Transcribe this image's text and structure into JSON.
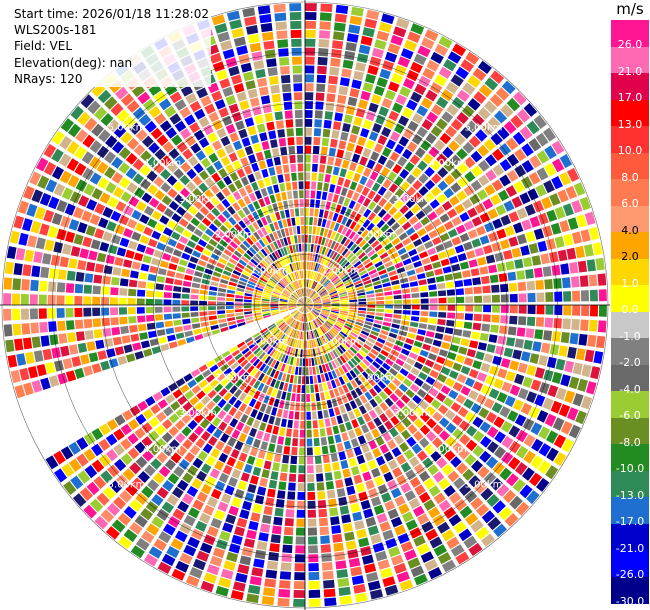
{
  "info": {
    "start_time": "Start time: 2026/01/18 11:28:02",
    "instrument": "WLS200s-181",
    "field": "Field: VEL",
    "elevation": "Elevation(deg): nan",
    "nrays": "NRays: 120"
  },
  "colorbar": {
    "unit": "m/s",
    "ticks": [
      "26.0",
      "21.0",
      "17.0",
      "13.0",
      "10.0",
      "8.0",
      "6.0",
      "4.0",
      "2.0",
      "1.0",
      "0.0",
      "-1.0",
      "-2.0",
      "-4.0",
      "-6.0",
      "-8.0",
      "-10.0",
      "-13.0",
      "-17.0",
      "-21.0",
      "-26.0",
      "-30.0"
    ],
    "colors": [
      "#ff1493",
      "#ff69b4",
      "#dc143c",
      "#ff0000",
      "#ff4040",
      "#ff6347",
      "#ff7f50",
      "#ff8c69",
      "#ffa500",
      "#ffd700",
      "#ffff00",
      "#d2b48c",
      "#808080",
      "#696969",
      "#9acd32",
      "#6b8e23",
      "#228b22",
      "#2e8b57",
      "#1e6fd0",
      "#0000cd",
      "#0000ff",
      "#00008b",
      "#191970"
    ]
  },
  "chart_data": {
    "type": "heatmap",
    "subtype": "polar-ppi",
    "field": "VEL",
    "units": "m/s",
    "nrays": 120,
    "range_rings_km": [
      1,
      2,
      3,
      4,
      5,
      6
    ],
    "range_ring_labels": [
      "1.00km",
      "2.00km",
      "3.00km",
      "4.00km",
      "5.00km"
    ],
    "max_range_km": 6,
    "missing_sector_deg": [
      240,
      251
    ],
    "color_scale": [
      -30,
      26
    ],
    "legend_placement": "right"
  }
}
